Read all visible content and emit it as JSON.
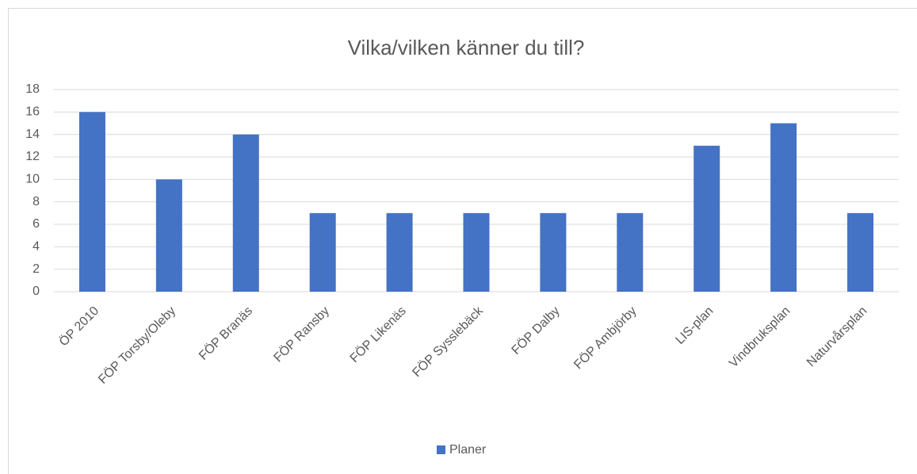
{
  "chart_data": {
    "type": "bar",
    "title": "Vilka/vilken känner du till?",
    "categories": [
      "ÖP 2010",
      "FÖP Torsby/Oleby",
      "FÖP Branäs",
      "FÖP Ransby",
      "FÖP Likenäs",
      "FÖP Sysslebäck",
      "FÖP Dalby",
      "FÖP Ambjörby",
      "LIS-plan",
      "Vindbruksplan",
      "Naturvårsplan"
    ],
    "series": [
      {
        "name": "Planer",
        "color": "#4472c4",
        "values": [
          16,
          10,
          14,
          7,
          7,
          7,
          7,
          7,
          13,
          15,
          7
        ]
      }
    ],
    "ylim": [
      0,
      18
    ],
    "yticks": [
      0,
      2,
      4,
      6,
      8,
      10,
      12,
      14,
      16,
      18
    ],
    "grid": true,
    "legend": "bottom"
  }
}
